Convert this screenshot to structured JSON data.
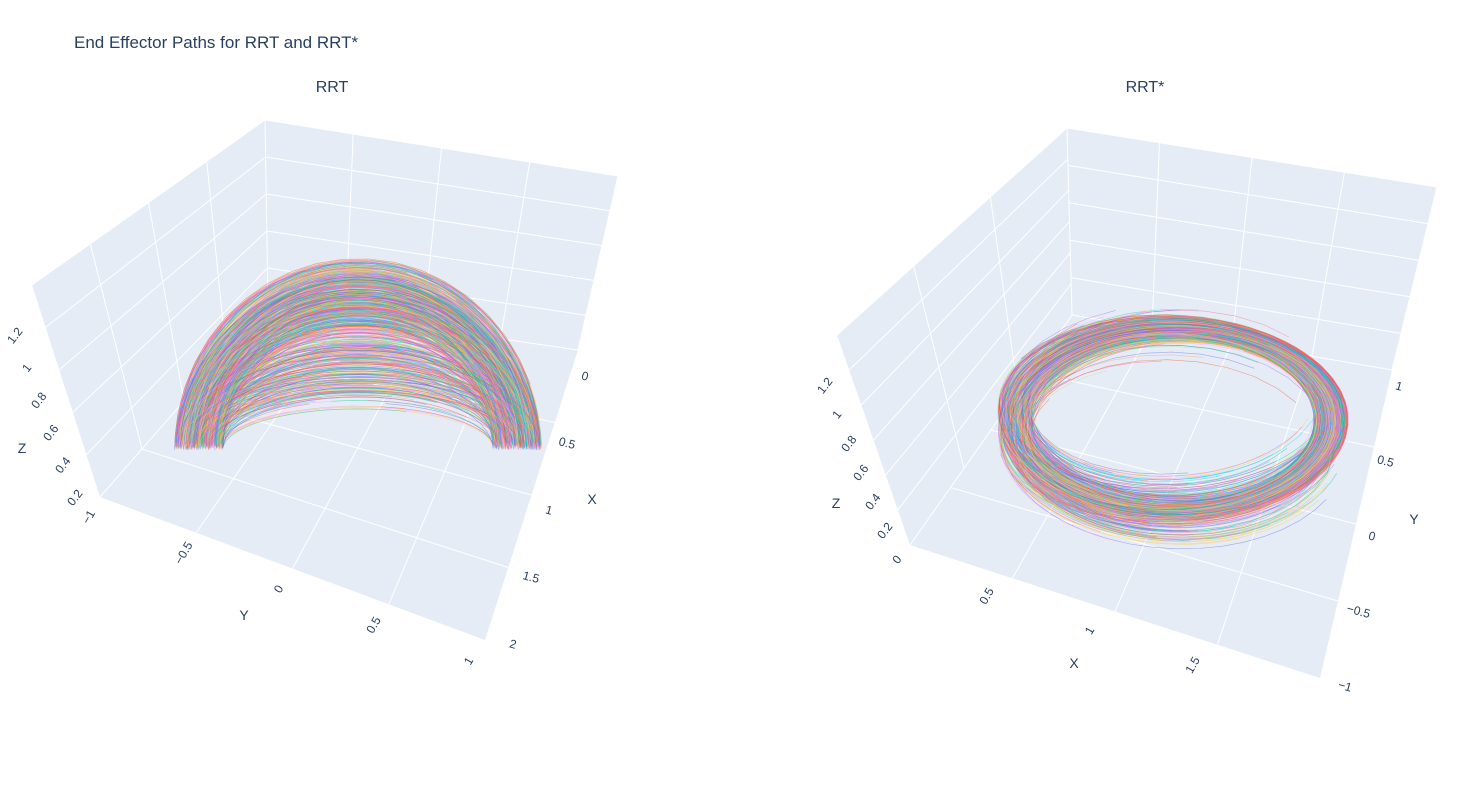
{
  "title": "End Effector Paths for RRT and RRT*",
  "colors": {
    "scene_bg": "#e5ecf6",
    "grid": "#ffffff",
    "text": "#2a3f5f",
    "palette": [
      "#636efa",
      "#ef553b",
      "#00cc96",
      "#ab63fa",
      "#ffa15a",
      "#19d3f3",
      "#ff6692",
      "#b6e880",
      "#ff97ff",
      "#fecb52"
    ]
  },
  "chart_data": [
    {
      "type": "line",
      "projection": "3d",
      "subtitle": "RRT",
      "shape": "hemisphere shell of many overlapping paths",
      "axes": {
        "x": {
          "label": "X",
          "ticks": [
            "0",
            "0.5",
            "1",
            "1.5",
            "2"
          ],
          "range": [
            -0.2,
            2
          ]
        },
        "y": {
          "label": "Y",
          "ticks": [
            "−1",
            "−0.5",
            "0",
            "0.5",
            "1"
          ],
          "range": [
            -1,
            1
          ]
        },
        "z": {
          "label": "Z",
          "ticks": [
            "0.2",
            "0.4",
            "0.6",
            "0.8",
            "1",
            "1.2"
          ],
          "range": [
            0.1,
            1.35
          ]
        }
      },
      "grid": true,
      "legend": "none",
      "series_count": 600
    },
    {
      "type": "line",
      "projection": "3d",
      "subtitle": "RRT*",
      "shape": "ring-shaped shell of many overlapping paths",
      "axes": {
        "x": {
          "label": "X",
          "ticks": [
            "0.5",
            "1",
            "1.5"
          ],
          "range": [
            0.2,
            1.9
          ]
        },
        "y": {
          "label": "Y",
          "ticks": [
            "−1",
            "−0.5",
            "0",
            "0.5",
            "1"
          ],
          "range": [
            -1,
            1.2
          ]
        },
        "z": {
          "label": "Z",
          "ticks": [
            "0",
            "0.2",
            "0.4",
            "0.6",
            "0.8",
            "1",
            "1.2"
          ],
          "range": [
            0,
            1.35
          ]
        }
      },
      "grid": true,
      "legend": "none",
      "series_count": 600
    }
  ]
}
